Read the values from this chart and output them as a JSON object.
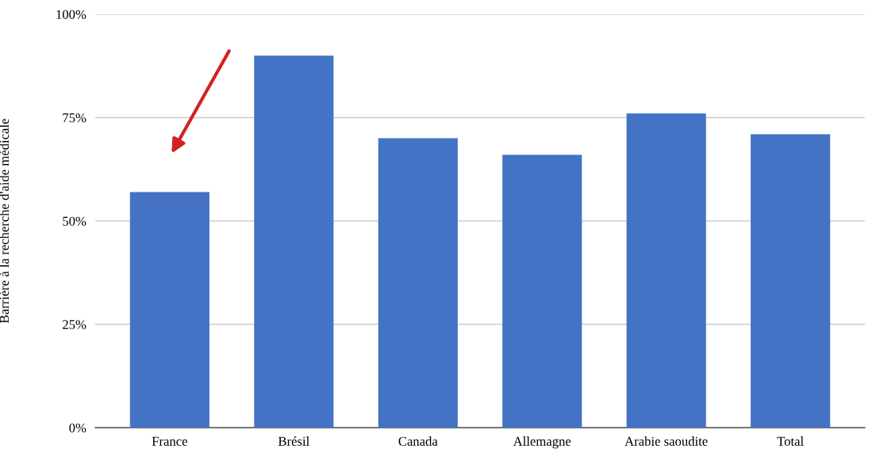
{
  "chart_data": {
    "type": "bar",
    "ylabel": "Barrière à la recherche d'aide médicale",
    "categories": [
      "France",
      "Brésil",
      "Canada",
      "Allemagne",
      "Arabie saoudite",
      "Total"
    ],
    "values": [
      57,
      90,
      70,
      66,
      76,
      71
    ],
    "color": "#4472c4",
    "ylim": [
      0,
      100
    ],
    "yticks": [
      {
        "value": 0,
        "label": "0%"
      },
      {
        "value": 25,
        "label": "25%"
      },
      {
        "value": 50,
        "label": "50%"
      },
      {
        "value": 75,
        "label": "75%"
      },
      {
        "value": 100,
        "label": "100%"
      }
    ],
    "grid": "y"
  }
}
